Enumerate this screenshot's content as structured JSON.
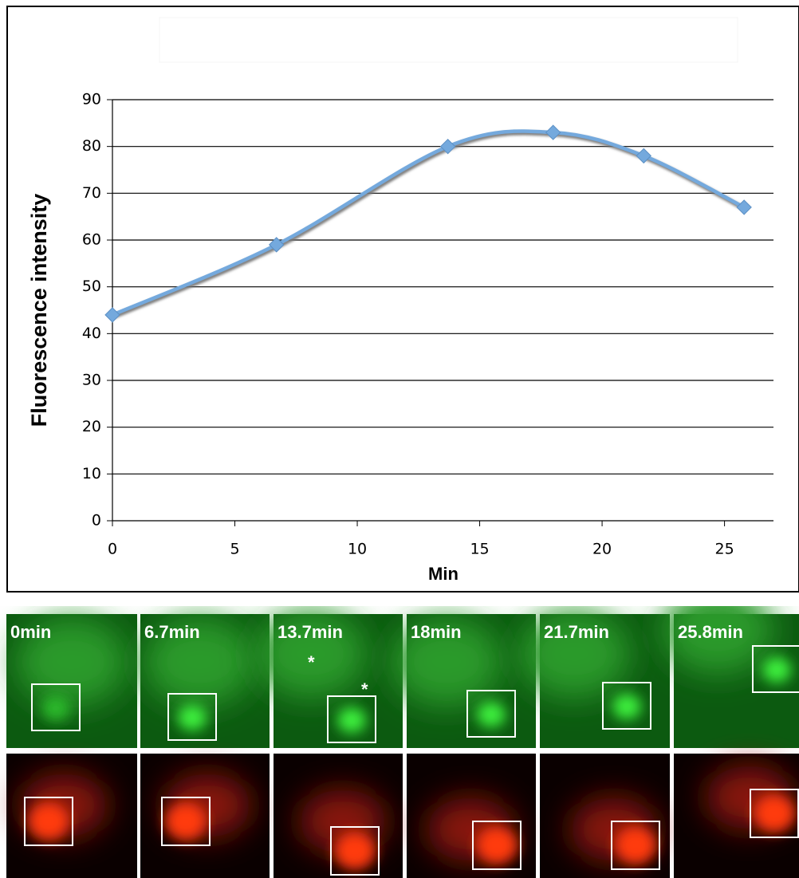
{
  "chart_data": {
    "type": "line",
    "x_label": "Min",
    "y_label": "Fluorescence intensity",
    "x": [
      0,
      6.7,
      13.7,
      18,
      21.7,
      25.8
    ],
    "values": [
      44,
      59,
      80,
      83,
      78,
      67
    ],
    "color": "#74a9dd",
    "xlim": [
      0,
      27
    ],
    "xticks": [
      0,
      5,
      10,
      15,
      20,
      25
    ],
    "ylim": [
      0,
      90
    ],
    "yticks": [
      0,
      10,
      20,
      30,
      40,
      50,
      60,
      70,
      80,
      90
    ],
    "grid": true,
    "smooth": true
  },
  "panels": [
    {
      "label": "0min"
    },
    {
      "label": "6.7min"
    },
    {
      "label": "13.7min",
      "annotations": [
        "*",
        "*"
      ]
    },
    {
      "label": "18min"
    },
    {
      "label": "21.7min"
    },
    {
      "label": "25.8min"
    }
  ]
}
